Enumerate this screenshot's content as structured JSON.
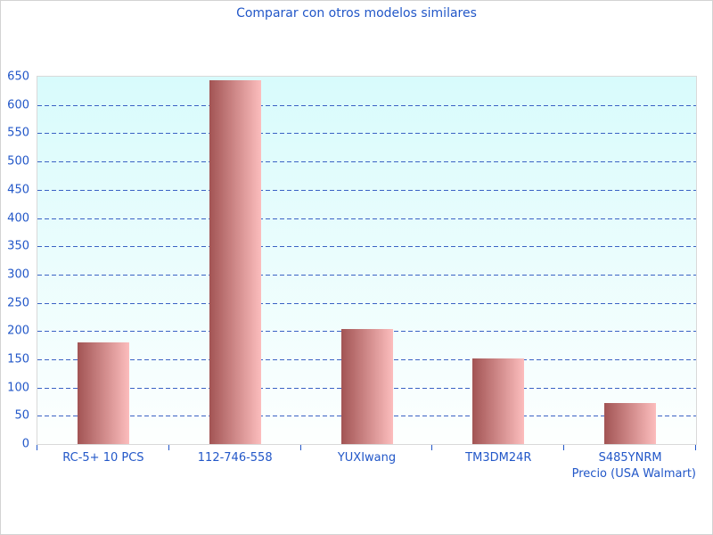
{
  "chart_data": {
    "type": "bar",
    "title": "Comparar con otros modelos similares",
    "xlabel": "Precio (USA Walmart)",
    "ylabel": "",
    "categories": [
      "RC-5+ 10 PCS",
      "112-746-558",
      "YUXIwang",
      "TM3DM24R",
      "S485YNRM"
    ],
    "values": [
      180,
      644,
      204,
      151,
      73
    ],
    "ylim": [
      0,
      650
    ],
    "ytick_step": 50,
    "grid": "dashed-horizontal",
    "legend_position": "none",
    "colors": {
      "title_text": "#2257c8",
      "axis_text": "#2257c8",
      "gridline": "#3a62c4",
      "bar_gradient_left": "#a25454",
      "bar_gradient_right": "#fcbdbd",
      "plot_bg_top": "#d8fbfc",
      "plot_bg_bottom": "#fdfffe",
      "plot_border": "#d9d9d9",
      "figure_border": "#d3d3d3",
      "figure_bg": "#ffffff"
    }
  }
}
